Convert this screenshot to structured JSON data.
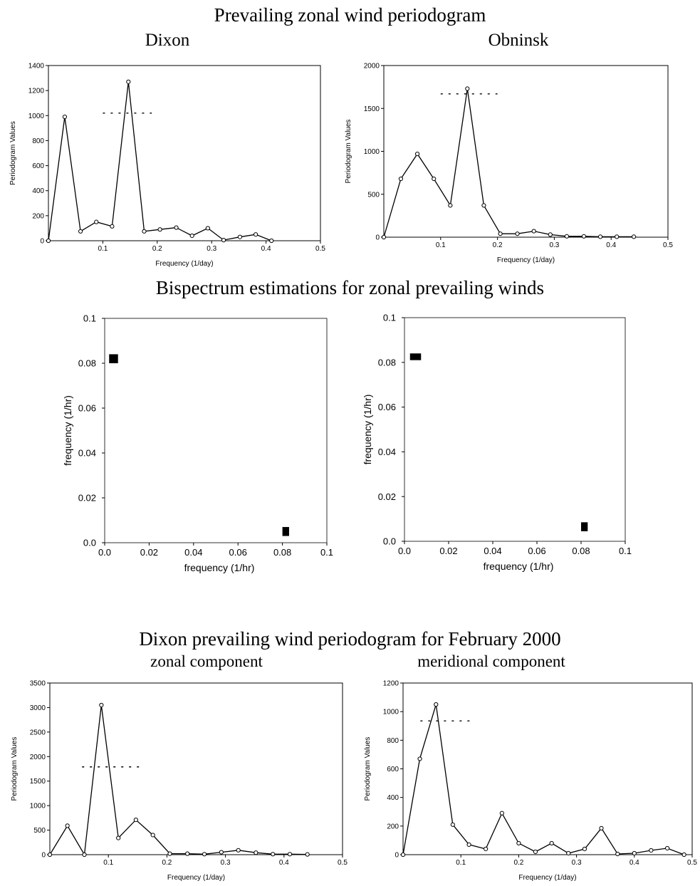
{
  "titles": {
    "top": "Prevailing zonal wind periodogram",
    "dixon": "Dixon",
    "obninsk": "Obninsk",
    "middle": "Bispectrum estimations for zonal prevailing winds",
    "bottom": "Dixon prevailing wind periodogram for February 2000",
    "zonal": "zonal component",
    "meridional": "meridional component"
  },
  "chart_data": [
    {
      "type": "line",
      "title": "Dixon",
      "xlabel": "Frequency (1/day)",
      "ylabel": "Periodogram Values",
      "xlim": [
        0,
        0.5
      ],
      "ylim": [
        0,
        1400
      ],
      "xticks": [
        0.1,
        0.2,
        0.3,
        0.4,
        0.5
      ],
      "yticks": [
        0,
        200,
        400,
        600,
        800,
        1000,
        1200,
        1400
      ],
      "x": [
        0,
        0.03,
        0.059,
        0.088,
        0.117,
        0.147,
        0.176,
        0.205,
        0.235,
        0.264,
        0.293,
        0.322,
        0.352,
        0.381,
        0.41
      ],
      "y": [
        0,
        990,
        75,
        150,
        115,
        1270,
        75,
        90,
        105,
        40,
        100,
        5,
        30,
        50,
        0
      ],
      "significance_level": {
        "value": 1020,
        "x_range": [
          0.1,
          0.19
        ]
      }
    },
    {
      "type": "line",
      "title": "Obninsk",
      "xlabel": "Frequency (1/day)",
      "ylabel": "Periodogram Values",
      "xlim": [
        0,
        0.5
      ],
      "ylim": [
        0,
        2000
      ],
      "xticks": [
        0.1,
        0.2,
        0.3,
        0.4,
        0.5
      ],
      "yticks": [
        0,
        500,
        1000,
        1500,
        2000
      ],
      "x": [
        0,
        0.03,
        0.059,
        0.088,
        0.117,
        0.147,
        0.176,
        0.205,
        0.235,
        0.264,
        0.293,
        0.322,
        0.352,
        0.381,
        0.41,
        0.44
      ],
      "y": [
        0,
        680,
        970,
        680,
        370,
        1730,
        370,
        40,
        40,
        70,
        30,
        10,
        10,
        5,
        5,
        5
      ],
      "significance_level": {
        "value": 1670,
        "x_range": [
          0.1,
          0.2
        ]
      }
    },
    {
      "type": "scatter",
      "title": "",
      "xlabel": "frequency (1/hr)",
      "ylabel": "frequency (1/hr)",
      "xlim": [
        0,
        0.1
      ],
      "ylim": [
        0,
        0.1
      ],
      "xticks": [
        0.0,
        0.02,
        0.04,
        0.06,
        0.08,
        0.1
      ],
      "yticks": [
        0.0,
        0.02,
        0.04,
        0.06,
        0.08,
        0.1
      ],
      "tick_labels": [
        "0.0",
        "0.02",
        "0.04",
        "0.06",
        "0.08",
        "0.1"
      ],
      "points": [
        {
          "x": 0.004,
          "y": 0.082,
          "w": 0.004,
          "h": 0.004
        },
        {
          "x": 0.0815,
          "y": 0.005,
          "w": 0.003,
          "h": 0.004
        }
      ]
    },
    {
      "type": "scatter",
      "title": "",
      "xlabel": "frequency (1/hr)",
      "ylabel": "frequency (1/hr)",
      "xlim": [
        0,
        0.1
      ],
      "ylim": [
        0,
        0.1
      ],
      "xticks": [
        0.0,
        0.02,
        0.04,
        0.06,
        0.08,
        0.1
      ],
      "yticks": [
        0.0,
        0.02,
        0.04,
        0.06,
        0.08,
        0.1
      ],
      "tick_labels": [
        "0.0",
        "0.02",
        "0.04",
        "0.06",
        "0.08",
        "0.1"
      ],
      "points": [
        {
          "x": 0.005,
          "y": 0.0825,
          "w": 0.005,
          "h": 0.003
        },
        {
          "x": 0.0815,
          "y": 0.0065,
          "w": 0.003,
          "h": 0.004
        }
      ]
    },
    {
      "type": "line",
      "title": "zonal component",
      "xlabel": "Frequency (1/day)",
      "ylabel": "Periodogram Values",
      "xlim": [
        0,
        0.5
      ],
      "ylim": [
        0,
        3500
      ],
      "xticks": [
        0.1,
        0.2,
        0.3,
        0.4,
        0.5
      ],
      "yticks": [
        0,
        500,
        1000,
        1500,
        2000,
        2500,
        3000,
        3500
      ],
      "x": [
        0,
        0.03,
        0.059,
        0.088,
        0.117,
        0.147,
        0.176,
        0.205,
        0.235,
        0.264,
        0.293,
        0.322,
        0.352,
        0.381,
        0.41,
        0.44
      ],
      "y": [
        0,
        590,
        0,
        3050,
        340,
        710,
        400,
        20,
        20,
        10,
        50,
        90,
        40,
        10,
        10,
        5
      ],
      "significance_level": {
        "value": 1790,
        "x_range": [
          0.055,
          0.155
        ]
      }
    },
    {
      "type": "line",
      "title": "meridional component",
      "xlabel": "Frequency (1/day)",
      "ylabel": "Periodogram Values",
      "xlim": [
        0,
        0.5
      ],
      "ylim": [
        0,
        1200
      ],
      "xticks": [
        0.1,
        0.2,
        0.3,
        0.4,
        0.5
      ],
      "yticks": [
        0,
        200,
        400,
        600,
        800,
        1000,
        1200
      ],
      "x": [
        0,
        0.029,
        0.057,
        0.086,
        0.114,
        0.143,
        0.171,
        0.2,
        0.229,
        0.257,
        0.286,
        0.314,
        0.343,
        0.371,
        0.4,
        0.429,
        0.457,
        0.486
      ],
      "y": [
        0,
        670,
        1050,
        210,
        70,
        40,
        290,
        80,
        20,
        80,
        10,
        40,
        185,
        5,
        10,
        30,
        45,
        0
      ],
      "significance_level": {
        "value": 935,
        "x_range": [
          0.03,
          0.115
        ]
      }
    }
  ]
}
